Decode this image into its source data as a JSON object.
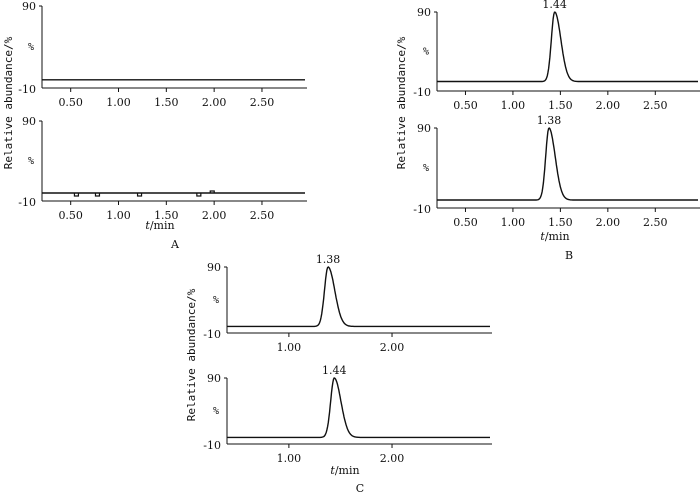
{
  "chart_data": [
    {
      "id": "A1",
      "panel": "A",
      "type": "line",
      "ylabel": "Relative abundance/%",
      "y_unit": "%",
      "y_ticks": [
        "90",
        "-10"
      ],
      "ylim": [
        -10,
        90
      ],
      "xlim": [
        0.2,
        2.95
      ],
      "x_ticks": [
        "0.50",
        "1.00",
        "1.50",
        "2.00",
        "2.50"
      ],
      "x_tick_values": [
        0.5,
        1.0,
        1.5,
        2.0,
        2.5
      ],
      "series": [
        {
          "name": "trace",
          "baseline": 0,
          "peaks": [],
          "dips": []
        }
      ]
    },
    {
      "id": "A2",
      "panel": "A",
      "type": "line",
      "ylabel": "Relative abundance/%",
      "y_unit": "%",
      "y_ticks": [
        "90",
        "-10"
      ],
      "ylim": [
        -10,
        90
      ],
      "xlim": [
        0.2,
        2.95
      ],
      "x_ticks": [
        "0.50",
        "1.00",
        "1.50",
        "2.00",
        "2.50"
      ],
      "x_tick_values": [
        0.5,
        1.0,
        1.5,
        2.0,
        2.5
      ],
      "xlabel_t": "t",
      "xlabel_rest": "/min",
      "panel_label": "A",
      "series": [
        {
          "name": "trace",
          "baseline": 0,
          "peaks": [],
          "dips": [
            0.56,
            0.78,
            1.22,
            1.84
          ],
          "bumps": [
            1.98
          ]
        }
      ]
    },
    {
      "id": "B1",
      "panel": "B",
      "type": "line",
      "ylabel": "Relative abundance/%",
      "y_unit": "%",
      "y_ticks": [
        "90",
        "-10"
      ],
      "ylim": [
        -10,
        90
      ],
      "xlim": [
        0.2,
        2.95
      ],
      "x_ticks": [
        "0.50",
        "1.00",
        "1.50",
        "2.00",
        "2.50"
      ],
      "x_tick_values": [
        0.5,
        1.0,
        1.5,
        2.0,
        2.5
      ],
      "series": [
        {
          "name": "trace",
          "baseline": 2,
          "peaks": [
            {
              "rt": 1.44,
              "height": 90,
              "label": "1.44"
            }
          ]
        }
      ]
    },
    {
      "id": "B2",
      "panel": "B",
      "type": "line",
      "ylabel": "Relative abundance/%",
      "y_unit": "%",
      "y_ticks": [
        "90",
        "-10"
      ],
      "ylim": [
        -10,
        90
      ],
      "xlim": [
        0.2,
        2.95
      ],
      "x_ticks": [
        "0.50",
        "1.00",
        "1.50",
        "2.00",
        "2.50"
      ],
      "x_tick_values": [
        0.5,
        1.0,
        1.5,
        2.0,
        2.5
      ],
      "xlabel_t": "t",
      "xlabel_rest": "/min",
      "panel_label": "B",
      "series": [
        {
          "name": "trace",
          "baseline": 0,
          "peaks": [
            {
              "rt": 1.38,
              "height": 90,
              "label": "1.38"
            }
          ]
        }
      ]
    },
    {
      "id": "C1",
      "panel": "C",
      "type": "line",
      "ylabel": "Relative abundance/%",
      "y_unit": "%",
      "y_ticks": [
        "90",
        "-10"
      ],
      "ylim": [
        -10,
        90
      ],
      "xlim": [
        0.4,
        2.95
      ],
      "x_ticks": [
        "1.00",
        "2.00"
      ],
      "x_tick_values": [
        1.0,
        2.0
      ],
      "series": [
        {
          "name": "trace",
          "baseline": 0,
          "peaks": [
            {
              "rt": 1.38,
              "height": 90,
              "label": "1.38"
            }
          ]
        }
      ]
    },
    {
      "id": "C2",
      "panel": "C",
      "type": "line",
      "ylabel": "Relative abundance/%",
      "y_unit": "%",
      "y_ticks": [
        "90",
        "-10"
      ],
      "ylim": [
        -10,
        90
      ],
      "xlim": [
        0.4,
        2.95
      ],
      "x_ticks": [
        "1.00",
        "2.00"
      ],
      "x_tick_values": [
        1.0,
        2.0
      ],
      "xlabel_t": "t",
      "xlabel_rest": "/min",
      "panel_label": "C",
      "series": [
        {
          "name": "trace",
          "baseline": 0,
          "peaks": [
            {
              "rt": 1.44,
              "height": 90,
              "label": "1.44"
            }
          ]
        }
      ]
    }
  ]
}
